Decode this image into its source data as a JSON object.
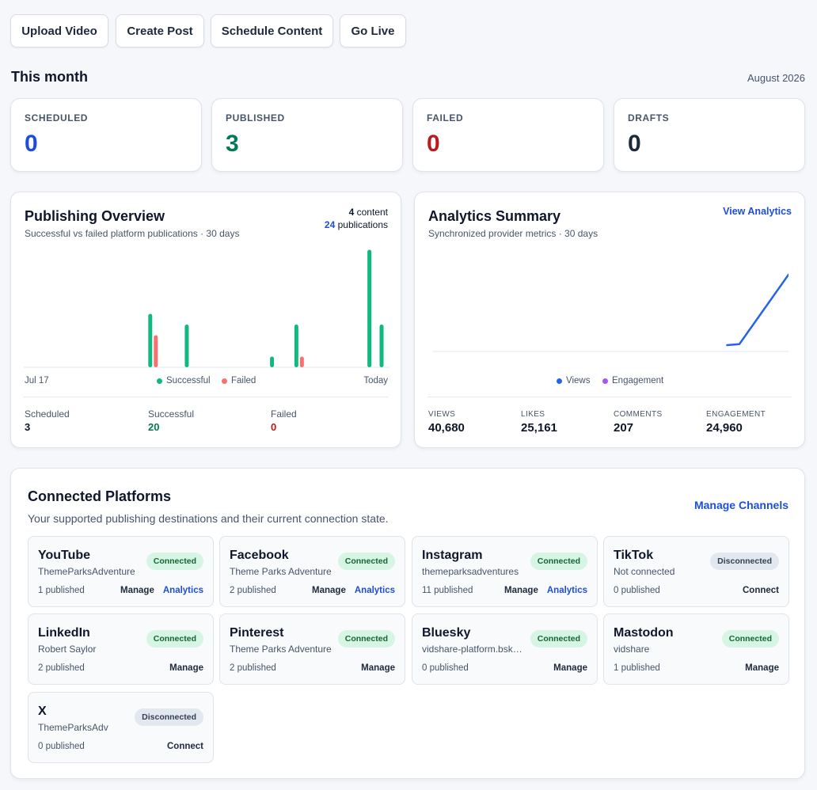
{
  "actions": {
    "upload_video": "Upload Video",
    "create_post": "Create Post",
    "schedule_content": "Schedule Content",
    "go_live": "Go Live"
  },
  "month": {
    "title": "This month",
    "date": "August 2026"
  },
  "stats": [
    {
      "label": "SCHEDULED",
      "value": "0",
      "color": "#1d4ed8"
    },
    {
      "label": "PUBLISHED",
      "value": "3",
      "color": "#047857"
    },
    {
      "label": "FAILED",
      "value": "0",
      "color": "#b91c1c"
    },
    {
      "label": "DRAFTS",
      "value": "0",
      "color": "#1e293b"
    }
  ],
  "publishing": {
    "title": "Publishing Overview",
    "subtitle": "Successful vs failed platform publications · 30 days",
    "content_count": "4",
    "content_label": "content",
    "publication_count": "24",
    "publication_label": "publications",
    "start_label": "Jul 17",
    "end_label": "Today",
    "legend_success": "Successful",
    "legend_failed": "Failed",
    "summary": {
      "scheduled_label": "Scheduled",
      "scheduled_value": "3",
      "successful_label": "Successful",
      "successful_value": "20",
      "failed_label": "Failed",
      "failed_value": "0"
    },
    "colors": {
      "success": "#10b981",
      "failed": "#f87171"
    }
  },
  "analytics": {
    "title": "Analytics Summary",
    "subtitle": "Synchronized provider metrics · 30 days",
    "view_link": "View Analytics",
    "legend_views": "Views",
    "legend_engagement": "Engagement",
    "metrics": [
      {
        "label": "VIEWS",
        "value": "40,680"
      },
      {
        "label": "LIKES",
        "value": "25,161"
      },
      {
        "label": "COMMENTS",
        "value": "207"
      },
      {
        "label": "ENGAGEMENT",
        "value": "24,960"
      }
    ],
    "colors": {
      "views": "#2563eb",
      "engagement": "#a855f7"
    }
  },
  "chart_data": [
    {
      "type": "bar",
      "x": [
        1,
        2,
        3,
        4,
        5,
        6,
        7,
        8,
        9,
        10,
        11,
        12,
        13,
        14,
        15,
        16,
        17,
        18,
        19,
        20,
        21,
        22,
        23,
        24,
        25,
        26,
        27,
        28,
        29,
        30
      ],
      "series": [
        {
          "name": "Successful",
          "values": [
            0,
            0,
            0,
            0,
            0,
            0,
            0,
            0,
            0,
            0,
            5,
            0,
            0,
            4,
            0,
            0,
            0,
            0,
            0,
            0,
            1,
            0,
            4,
            0,
            0,
            0,
            0,
            0,
            11,
            4
          ]
        },
        {
          "name": "Failed",
          "values": [
            0,
            0,
            0,
            0,
            0,
            0,
            0,
            0,
            0,
            0,
            3,
            0,
            0,
            0,
            0,
            0,
            0,
            0,
            0,
            0,
            0,
            0,
            1,
            0,
            0,
            0,
            0,
            0,
            0,
            0
          ]
        }
      ]
    },
    {
      "type": "line",
      "x": [
        1,
        2,
        3,
        4,
        5,
        6,
        7,
        8,
        9,
        10,
        11,
        12,
        13,
        14,
        15,
        16,
        17,
        18,
        19,
        20,
        21,
        22,
        23,
        24,
        25,
        26,
        27,
        28,
        29,
        30
      ],
      "series": [
        {
          "name": "Views",
          "values": [
            null,
            null,
            null,
            null,
            null,
            null,
            null,
            null,
            null,
            null,
            null,
            null,
            null,
            null,
            null,
            null,
            null,
            null,
            null,
            null,
            null,
            null,
            null,
            null,
            6000,
            6500,
            null,
            null,
            null,
            40680
          ]
        }
      ]
    }
  ],
  "platforms": {
    "title": "Connected Platforms",
    "subtitle": "Your supported publishing destinations and their current connection state.",
    "manage_link": "Manage Channels",
    "items": [
      {
        "name": "YouTube",
        "handle": "ThemeParksAdventure",
        "count": "1 published",
        "status": "Connected",
        "connected": true,
        "manage": "Manage",
        "analytics": "Analytics"
      },
      {
        "name": "Facebook",
        "handle": "Theme Parks Adventure",
        "count": "2 published",
        "status": "Connected",
        "connected": true,
        "manage": "Manage",
        "analytics": "Analytics"
      },
      {
        "name": "Instagram",
        "handle": "themeparksadventures",
        "count": "11 published",
        "status": "Connected",
        "connected": true,
        "manage": "Manage",
        "analytics": "Analytics"
      },
      {
        "name": "TikTok",
        "handle": "Not connected",
        "count": "0 published",
        "status": "Disconnected",
        "connected": false,
        "manage": "Connect"
      },
      {
        "name": "LinkedIn",
        "handle": "Robert Saylor",
        "count": "2 published",
        "status": "Connected",
        "connected": true,
        "manage": "Manage"
      },
      {
        "name": "Pinterest",
        "handle": "Theme Parks Adventure",
        "count": "2 published",
        "status": "Connected",
        "connected": true,
        "manage": "Manage"
      },
      {
        "name": "Bluesky",
        "handle": "vidshare-platform.bsky.social",
        "count": "0 published",
        "status": "Connected",
        "connected": true,
        "manage": "Manage"
      },
      {
        "name": "Mastodon",
        "handle": "vidshare",
        "count": "1 published",
        "status": "Connected",
        "connected": true,
        "manage": "Manage"
      },
      {
        "name": "X",
        "handle": "ThemeParksAdv",
        "count": "0 published",
        "status": "Disconnected",
        "connected": false,
        "manage": "Connect"
      }
    ]
  }
}
